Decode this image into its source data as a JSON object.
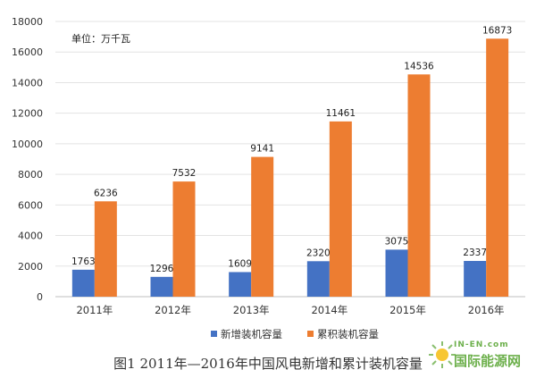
{
  "chart_data": {
    "type": "bar",
    "categories": [
      "2011年",
      "2012年",
      "2013年",
      "2014年",
      "2015年",
      "2016年"
    ],
    "series": [
      {
        "name": "新增装机容量",
        "values": [
          1763,
          1296,
          1609,
          2320,
          3075,
          2337
        ],
        "color": "#4472c4"
      },
      {
        "name": "累积装机容量",
        "values": [
          6236,
          7532,
          9141,
          11461,
          14536,
          16873
        ],
        "color": "#ed7d31"
      }
    ],
    "unit_label": "单位：万千瓦",
    "yticks": [
      0,
      2000,
      4000,
      6000,
      8000,
      10000,
      12000,
      14000,
      16000,
      18000
    ],
    "ylim": [
      0,
      18000
    ],
    "grid": true,
    "legend_position": "bottom"
  },
  "caption": "图1 2011年—2016年中国风电新增和累计装机容量",
  "watermark": {
    "top": "IN-EN.com",
    "main": "国际能源网"
  }
}
